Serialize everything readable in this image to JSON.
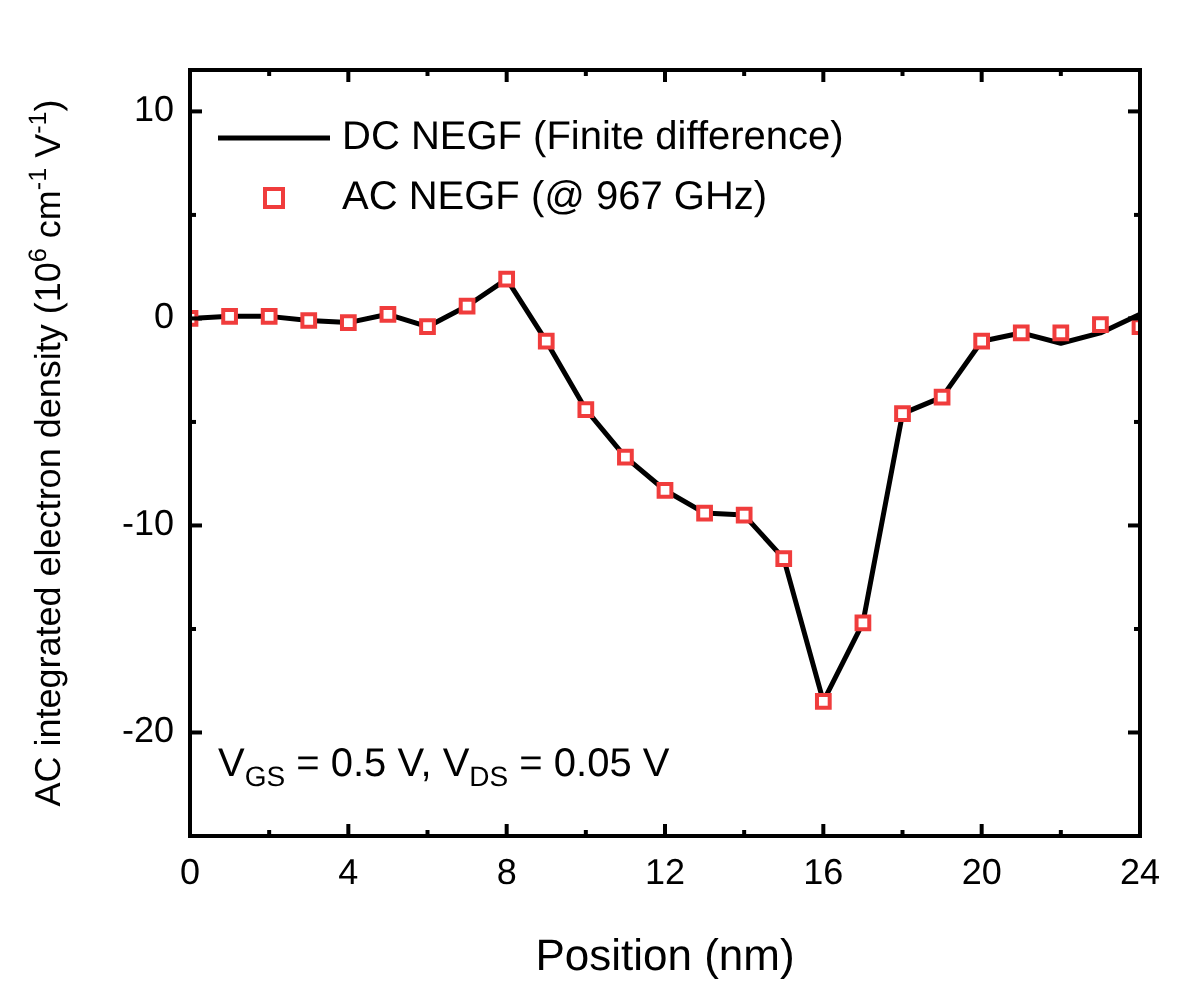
{
  "chart_data": {
    "type": "line",
    "xlabel": "Position (nm)",
    "ylabel": "AC integrated electron density (10$^{6}$ cm$^{-1}$ V$^{-1}$)",
    "x": [
      0,
      1,
      2,
      3,
      4,
      5,
      6,
      7,
      8,
      9,
      10,
      11,
      12,
      13,
      14,
      15,
      16,
      17,
      18,
      19,
      20,
      21,
      22,
      23,
      24
    ],
    "series": [
      {
        "name": "DC NEGF (Finite difference)",
        "type": "line",
        "color": "#000000",
        "marker": "none",
        "values": [
          0,
          0.1,
          0.1,
          -0.1,
          -0.2,
          0.2,
          -0.4,
          0.6,
          1.9,
          -1.1,
          -4.4,
          -6.7,
          -8.3,
          -9.4,
          -9.5,
          -11.6,
          -18.5,
          -14.7,
          -4.6,
          -3.8,
          -1.1,
          -0.7,
          -1.2,
          -0.7,
          0.2
        ]
      },
      {
        "name": "AC NEGF (@ 967 GHz)",
        "type": "scatter",
        "color": "#f03c3c",
        "marker": "square",
        "values": [
          0,
          0.1,
          0.1,
          -0.1,
          -0.2,
          0.2,
          -0.4,
          0.6,
          1.9,
          -1.1,
          -4.4,
          -6.7,
          -8.3,
          -9.4,
          -9.5,
          -11.6,
          -18.5,
          -14.7,
          -4.6,
          -3.8,
          -1.1,
          -0.7,
          -0.7,
          -0.3,
          -0.4
        ]
      }
    ],
    "xlim": [
      0,
      24
    ],
    "xticks": [
      0,
      4,
      8,
      12,
      16,
      20,
      24
    ],
    "ylim": [
      -25,
      12
    ],
    "yticks": [
      -20,
      -10,
      0,
      10
    ],
    "grid": false,
    "legend": "top left",
    "annotations": [
      "V$_{GS}$ = 0.5 V, V$_{DS}$ = 0.05 V"
    ]
  }
}
